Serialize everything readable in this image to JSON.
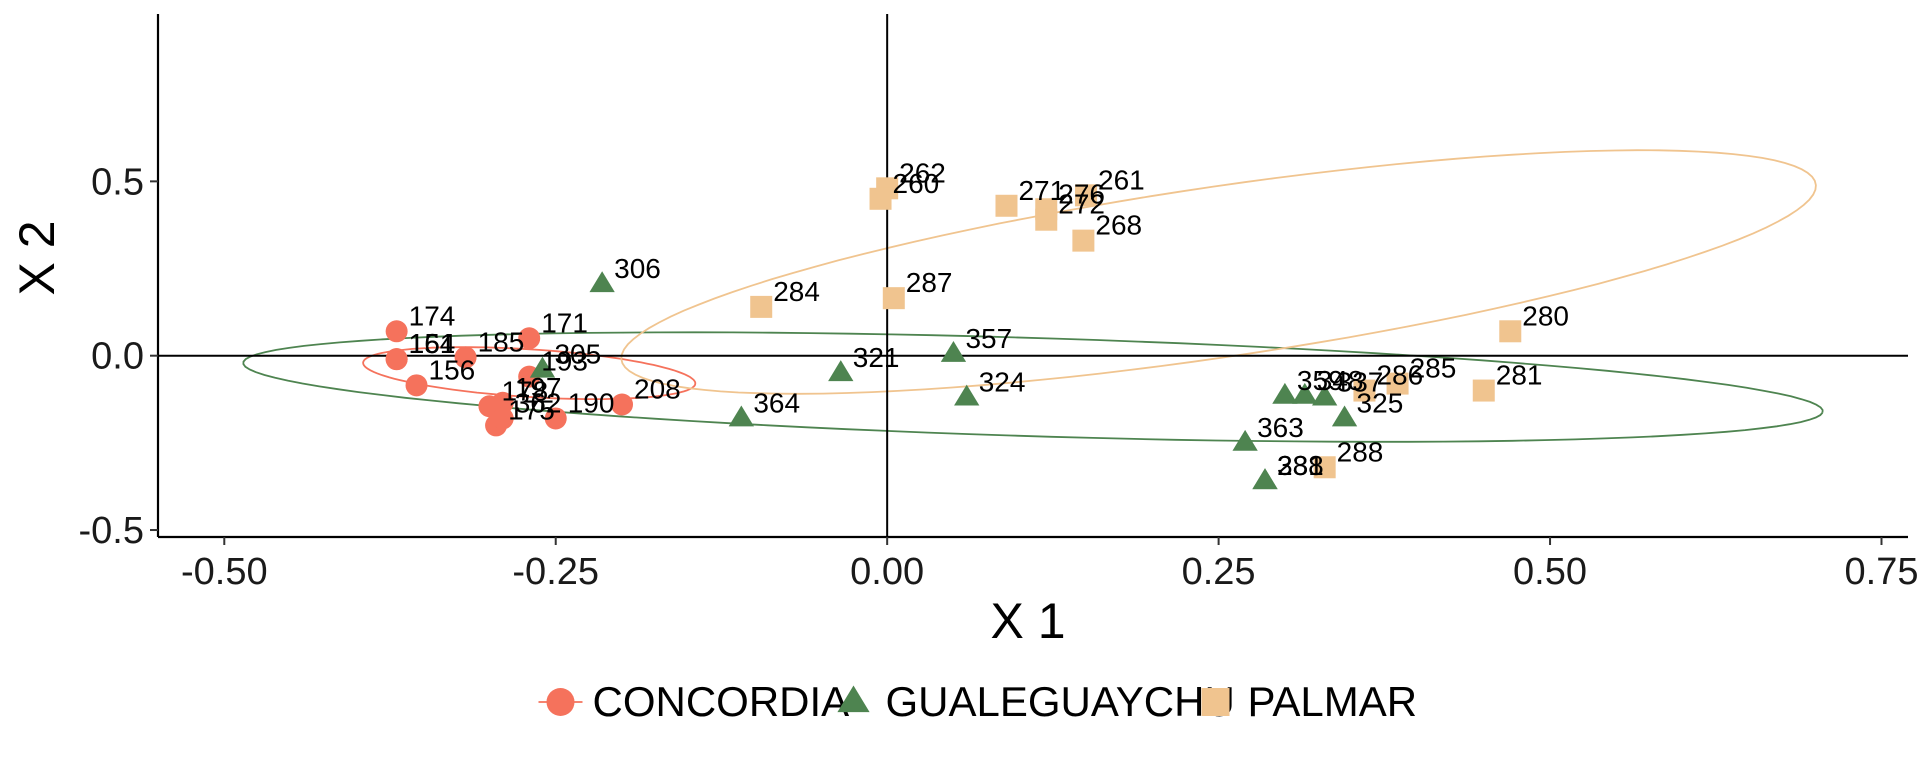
{
  "chart_data": {
    "type": "scatter",
    "xlabel": "X 1",
    "ylabel": "X 2",
    "xlim": [
      -0.55,
      0.77
    ],
    "ylim": [
      -0.52,
      0.98
    ],
    "x_ticks": [
      -0.5,
      -0.25,
      0.0,
      0.25,
      0.5,
      0.75
    ],
    "x_tick_labels": [
      "-0.50",
      "-0.25",
      "0.00",
      "0.25",
      "0.50",
      "0.75"
    ],
    "y_ticks": [
      -0.5,
      0.0,
      0.5
    ],
    "y_tick_labels": [
      "-0.5",
      "0.0",
      "0.5"
    ],
    "reference_lines": {
      "x": 0.0,
      "y": 0.0
    },
    "legend_position": "bottom",
    "series": [
      {
        "name": "CONCORDIA",
        "marker": "circle",
        "color": "#F5725C",
        "ellipse": {
          "cx": -0.27,
          "cy": -0.05,
          "rx": 0.13,
          "ry": 0.066,
          "angle": -18
        },
        "points": [
          {
            "label": "174",
            "x": -0.37,
            "y": 0.07
          },
          {
            "label": "171",
            "x": -0.27,
            "y": 0.05
          },
          {
            "label": "154",
            "x": -0.37,
            "y": -0.01
          },
          {
            "label": "161",
            "x": -0.37,
            "y": -0.01
          },
          {
            "label": "185",
            "x": -0.318,
            "y": -0.005
          },
          {
            "label": "156",
            "x": -0.355,
            "y": -0.085
          },
          {
            "label": "197",
            "x": -0.29,
            "y": -0.135
          },
          {
            "label": "178",
            "x": -0.3,
            "y": -0.145
          },
          {
            "label": "193",
            "x": -0.27,
            "y": -0.06
          },
          {
            "label": "208",
            "x": -0.2,
            "y": -0.14
          },
          {
            "label": "190",
            "x": -0.25,
            "y": -0.18
          },
          {
            "label": "175",
            "x": -0.295,
            "y": -0.2
          },
          {
            "label": "362",
            "x": -0.29,
            "y": -0.18
          }
        ]
      },
      {
        "name": "GUALEGUAYCHU",
        "marker": "triangle",
        "color": "#4E8450",
        "ellipse": {
          "cx": 0.11,
          "cy": -0.09,
          "rx": 0.6,
          "ry": 0.14,
          "angle": -7
        },
        "points": [
          {
            "label": "306",
            "x": -0.215,
            "y": 0.205
          },
          {
            "label": "305",
            "x": -0.26,
            "y": -0.04
          },
          {
            "label": "364",
            "x": -0.11,
            "y": -0.18
          },
          {
            "label": "321",
            "x": -0.035,
            "y": -0.05
          },
          {
            "label": "357",
            "x": 0.05,
            "y": 0.005
          },
          {
            "label": "324",
            "x": 0.06,
            "y": -0.12
          },
          {
            "label": "359",
            "x": 0.3,
            "y": -0.115
          },
          {
            "label": "348",
            "x": 0.315,
            "y": -0.115
          },
          {
            "label": "337",
            "x": 0.33,
            "y": -0.12
          },
          {
            "label": "325",
            "x": 0.345,
            "y": -0.18
          },
          {
            "label": "363",
            "x": 0.27,
            "y": -0.25
          },
          {
            "label": "331",
            "x": 0.285,
            "y": -0.36
          },
          {
            "label": "288",
            "x": 0.285,
            "y": -0.36
          }
        ]
      },
      {
        "name": "PALMAR",
        "marker": "square",
        "color": "#F0C48F",
        "ellipse": {
          "cx": 0.25,
          "cy": 0.24,
          "rx": 0.53,
          "ry": 0.21,
          "angle": 35
        },
        "points": [
          {
            "label": "262",
            "x": 0.0,
            "y": 0.48
          },
          {
            "label": "260",
            "x": -0.005,
            "y": 0.45
          },
          {
            "label": "271",
            "x": 0.09,
            "y": 0.43
          },
          {
            "label": "276",
            "x": 0.12,
            "y": 0.42
          },
          {
            "label": "272",
            "x": 0.12,
            "y": 0.39
          },
          {
            "label": "261",
            "x": 0.15,
            "y": 0.46
          },
          {
            "label": "268",
            "x": 0.148,
            "y": 0.33
          },
          {
            "label": "284",
            "x": -0.095,
            "y": 0.14
          },
          {
            "label": "287",
            "x": 0.005,
            "y": 0.165
          },
          {
            "label": "280",
            "x": 0.47,
            "y": 0.07
          },
          {
            "label": "285",
            "x": 0.385,
            "y": -0.08
          },
          {
            "label": "286",
            "x": 0.36,
            "y": -0.1
          },
          {
            "label": "281",
            "x": 0.45,
            "y": -0.1
          },
          {
            "label": "288",
            "x": 0.33,
            "y": -0.32
          }
        ]
      }
    ]
  }
}
